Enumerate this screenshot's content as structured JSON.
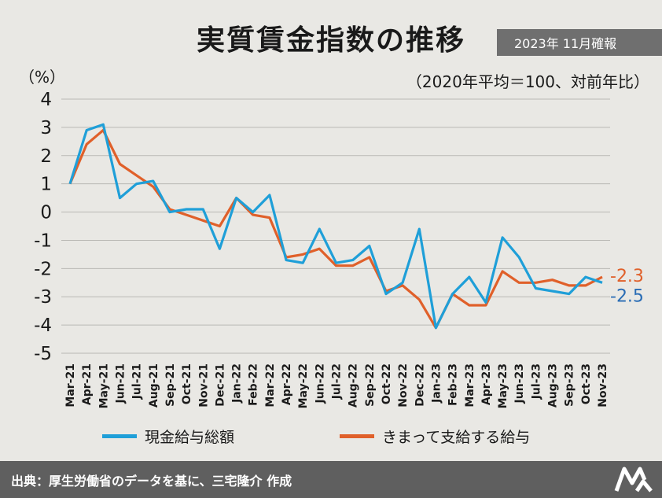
{
  "header": {
    "title": "実質賃金指数の推移",
    "badge": "2023年 11月確報",
    "subtitle": "（2020年平均＝100、対前年比）",
    "unit": "（%）"
  },
  "footer": {
    "source": "出典：厚生労働省のデータを基に、三宅隆介 作成"
  },
  "colors": {
    "cash": "#1f9fd8",
    "regular": "#e0602a",
    "end_label_blue": "#2a6db5"
  },
  "chart_data": {
    "type": "line",
    "x": [
      "Mar-21",
      "Apr-21",
      "May-21",
      "Jun-21",
      "Jul-21",
      "Aug-21",
      "Sep-21",
      "Oct-21",
      "Nov-21",
      "Dec-21",
      "Jan-22",
      "Feb-22",
      "Mar-22",
      "Apr-22",
      "May-22",
      "Jun-22",
      "Jul-22",
      "Aug-22",
      "Sep-22",
      "Oct-22",
      "Nov-22",
      "Dec-22",
      "Jan-23",
      "Feb-23",
      "Mar-23",
      "Apr-23",
      "May-23",
      "Jun-23",
      "Jul-23",
      "Aug-23",
      "Sep-23",
      "Oct-23",
      "Nov-23"
    ],
    "series": [
      {
        "name": "現金給与総額",
        "color": "#1f9fd8",
        "values": [
          1.0,
          2.9,
          3.1,
          0.5,
          1.0,
          1.1,
          0.0,
          0.1,
          0.1,
          -1.3,
          0.5,
          0.0,
          0.6,
          -1.7,
          -1.8,
          -0.6,
          -1.8,
          -1.7,
          -1.2,
          -2.9,
          -2.5,
          -0.6,
          -4.1,
          -2.9,
          -2.3,
          -3.2,
          -0.9,
          -1.6,
          -2.7,
          -2.8,
          -2.9,
          -2.3,
          -2.5
        ]
      },
      {
        "name": "きまって支給する給与",
        "color": "#e0602a",
        "values": [
          1.0,
          2.4,
          2.9,
          1.7,
          1.3,
          0.9,
          0.1,
          -0.1,
          -0.3,
          -0.5,
          0.5,
          -0.1,
          -0.2,
          -1.6,
          -1.5,
          -1.3,
          -1.9,
          -1.9,
          -1.6,
          -2.8,
          -2.6,
          -3.1,
          -4.1,
          -2.9,
          -3.3,
          -3.3,
          -2.1,
          -2.5,
          -2.5,
          -2.4,
          -2.6,
          -2.6,
          -2.3
        ]
      }
    ],
    "yticks": [
      "4",
      "3",
      "2",
      "1",
      "0",
      "-1",
      "-2",
      "-3",
      "-4",
      "-5"
    ],
    "ylim": [
      -5,
      4
    ],
    "end_labels": {
      "regular": "-2.3",
      "cash": "-2.5"
    },
    "grid": true
  }
}
